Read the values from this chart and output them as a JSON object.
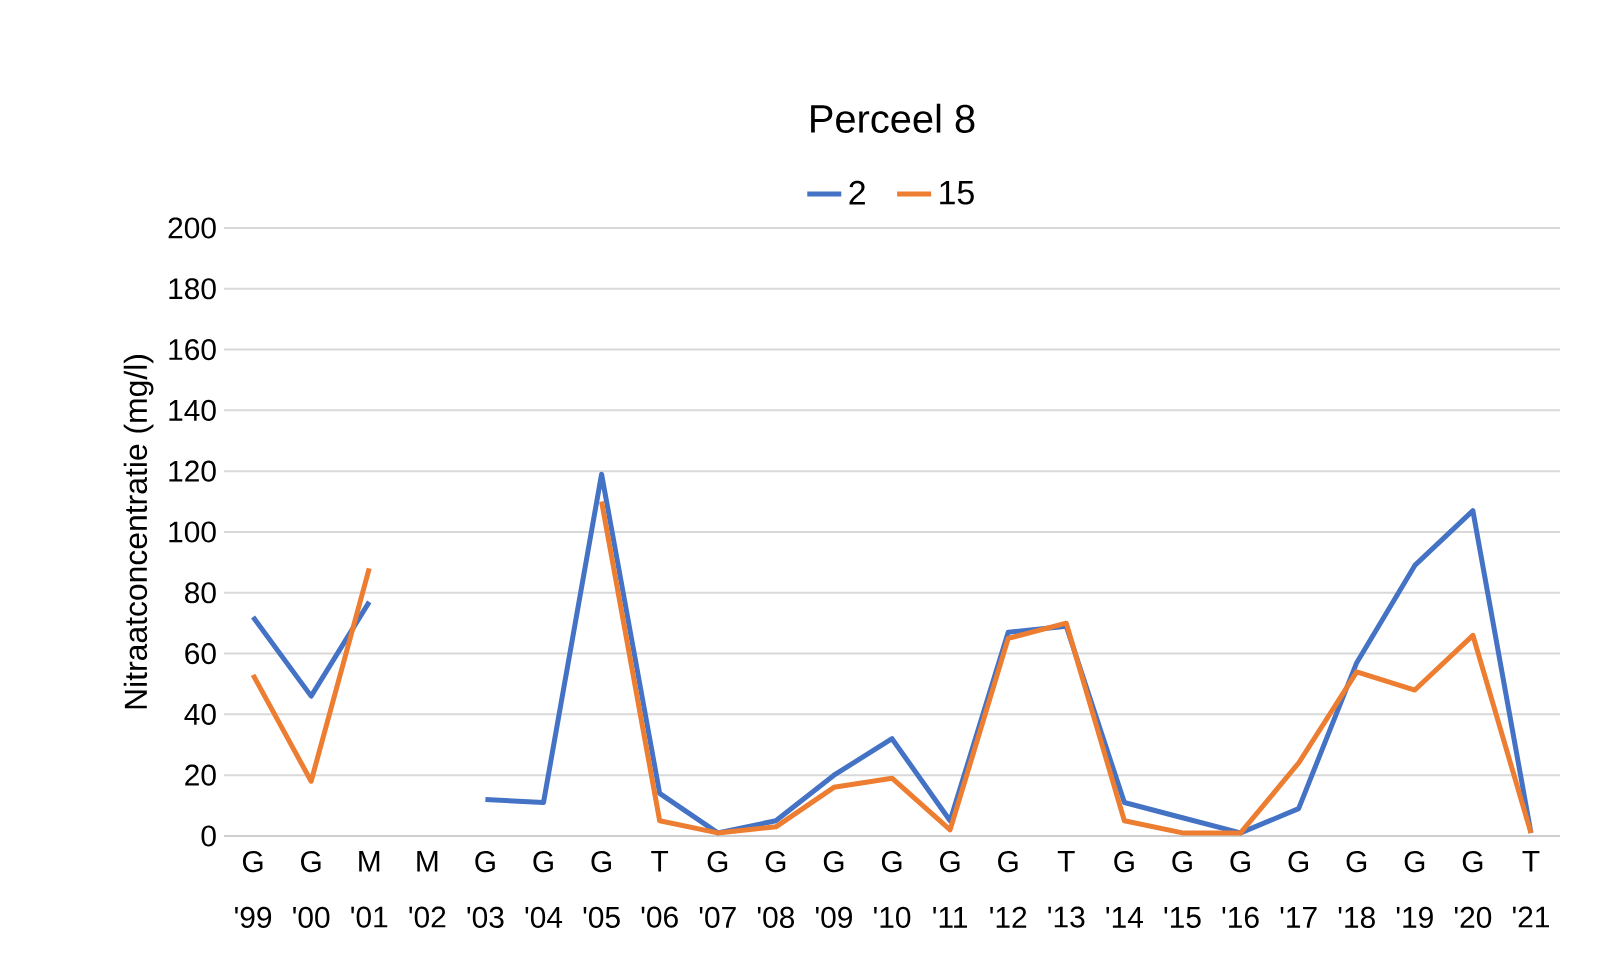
{
  "chart_data": {
    "type": "line",
    "title": "Perceel 8",
    "ylabel": "Nitraatconcentratie (mg/l)",
    "categories": [
      "G '99",
      "G '00",
      "M '01",
      "M '02",
      "G '03",
      "G '04",
      "G '05",
      "T '06",
      "G '07",
      "G '08",
      "G '09",
      "G '10",
      "G '11",
      "G '12",
      "T '13",
      "G '14",
      "G '15",
      "G '16",
      "G '17",
      "G '18",
      "G '19",
      "G '20",
      "T '21"
    ],
    "series": [
      {
        "name": "2",
        "color": "#4472c4",
        "values": [
          72,
          46,
          77,
          null,
          12,
          11,
          119,
          14,
          1,
          5,
          20,
          32,
          5,
          67,
          69,
          11,
          6,
          1,
          9,
          57,
          89,
          107,
          1
        ]
      },
      {
        "name": "15",
        "color": "#ed7d31",
        "values": [
          53,
          18,
          88,
          null,
          null,
          null,
          110,
          5,
          1,
          3,
          16,
          19,
          2,
          65,
          70,
          5,
          1,
          1,
          24,
          54,
          48,
          66,
          1
        ]
      }
    ],
    "ylim": [
      0,
      200
    ],
    "yticks": [
      0,
      20,
      40,
      60,
      80,
      100,
      120,
      140,
      160,
      180,
      200
    ],
    "grid": "y",
    "legend": "top",
    "marker": "none",
    "line_style": "solid"
  }
}
